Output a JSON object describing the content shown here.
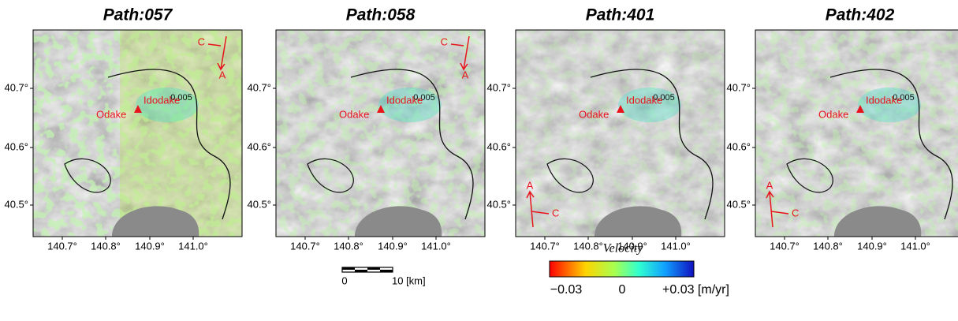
{
  "panels": [
    {
      "title": "Path:057",
      "dir_labels": [
        "C",
        "A"
      ],
      "contour_label": "0.005"
    },
    {
      "title": "Path:058",
      "dir_labels": [
        "C",
        "A"
      ],
      "contour_label": "0.005"
    },
    {
      "title": "Path:401",
      "dir_labels": [
        "A",
        "C"
      ],
      "contour_label": "0.005"
    },
    {
      "title": "Path:402",
      "dir_labels": [
        "A",
        "C"
      ],
      "contour_label": "0.005"
    }
  ],
  "lat_ticks": [
    "40.7°",
    "40.6°",
    "40.5°"
  ],
  "lon_ticks": [
    "140.7°",
    "140.8°",
    "140.9°",
    "141.0°"
  ],
  "places": [
    "Idodake",
    "Odake"
  ],
  "scale_bar": {
    "labels": [
      "0",
      "10 [km]"
    ]
  },
  "colorbar": {
    "title": "Velocity",
    "labels": [
      "−0.03",
      "0",
      "+0.03 [m/yr]"
    ]
  }
}
